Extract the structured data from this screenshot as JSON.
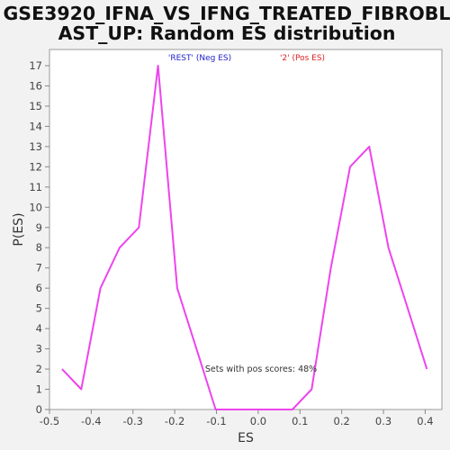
{
  "chart_data": {
    "type": "line",
    "title_line1": "GSE3920_IFNA_VS_IFNG_TREATED_FIBROBL",
    "title_line2": "AST_UP: Random ES distribution",
    "xlabel": "ES",
    "ylabel": "P(ES)",
    "xlim": [
      -0.5,
      0.44
    ],
    "ylim": [
      0,
      17.8
    ],
    "x_ticks": [
      -0.5,
      -0.4,
      -0.3,
      -0.2,
      -0.1,
      0.0,
      0.1,
      0.2,
      0.3,
      0.4
    ],
    "x_tick_labels": [
      "-0.5",
      "-0.4",
      "-0.3",
      "-0.2",
      "-0.1",
      "0.0",
      "0.1",
      "0.2",
      "0.3",
      "0.4"
    ],
    "y_ticks": [
      0,
      1,
      2,
      3,
      4,
      5,
      6,
      7,
      8,
      9,
      10,
      11,
      12,
      13,
      14,
      15,
      16,
      17
    ],
    "y_tick_labels": [
      "0",
      "1",
      "2",
      "3",
      "4",
      "5",
      "6",
      "7",
      "8",
      "9",
      "10",
      "11",
      "12",
      "13",
      "14",
      "15",
      "16",
      "17"
    ],
    "grid": false,
    "legend": [
      {
        "label": "'REST' (Neg ES)",
        "color": "#2222cc"
      },
      {
        "label": "'2' (Pos ES)",
        "color": "#dd2222"
      }
    ],
    "annotation": "Sets with pos scores: 48%",
    "series": [
      {
        "color": "#ee44ee",
        "x": [
          -0.47,
          -0.424,
          -0.378,
          -0.332,
          -0.286,
          -0.24,
          -0.194,
          -0.148,
          -0.102,
          -0.056,
          -0.01,
          0.036,
          0.082,
          0.128,
          0.174,
          0.22,
          0.266,
          0.312,
          0.358,
          0.404
        ],
        "y": [
          2,
          1,
          6,
          8,
          9,
          17,
          6,
          3,
          0,
          0,
          0,
          0,
          0,
          1,
          7,
          12,
          13,
          8,
          5,
          2
        ]
      }
    ]
  }
}
